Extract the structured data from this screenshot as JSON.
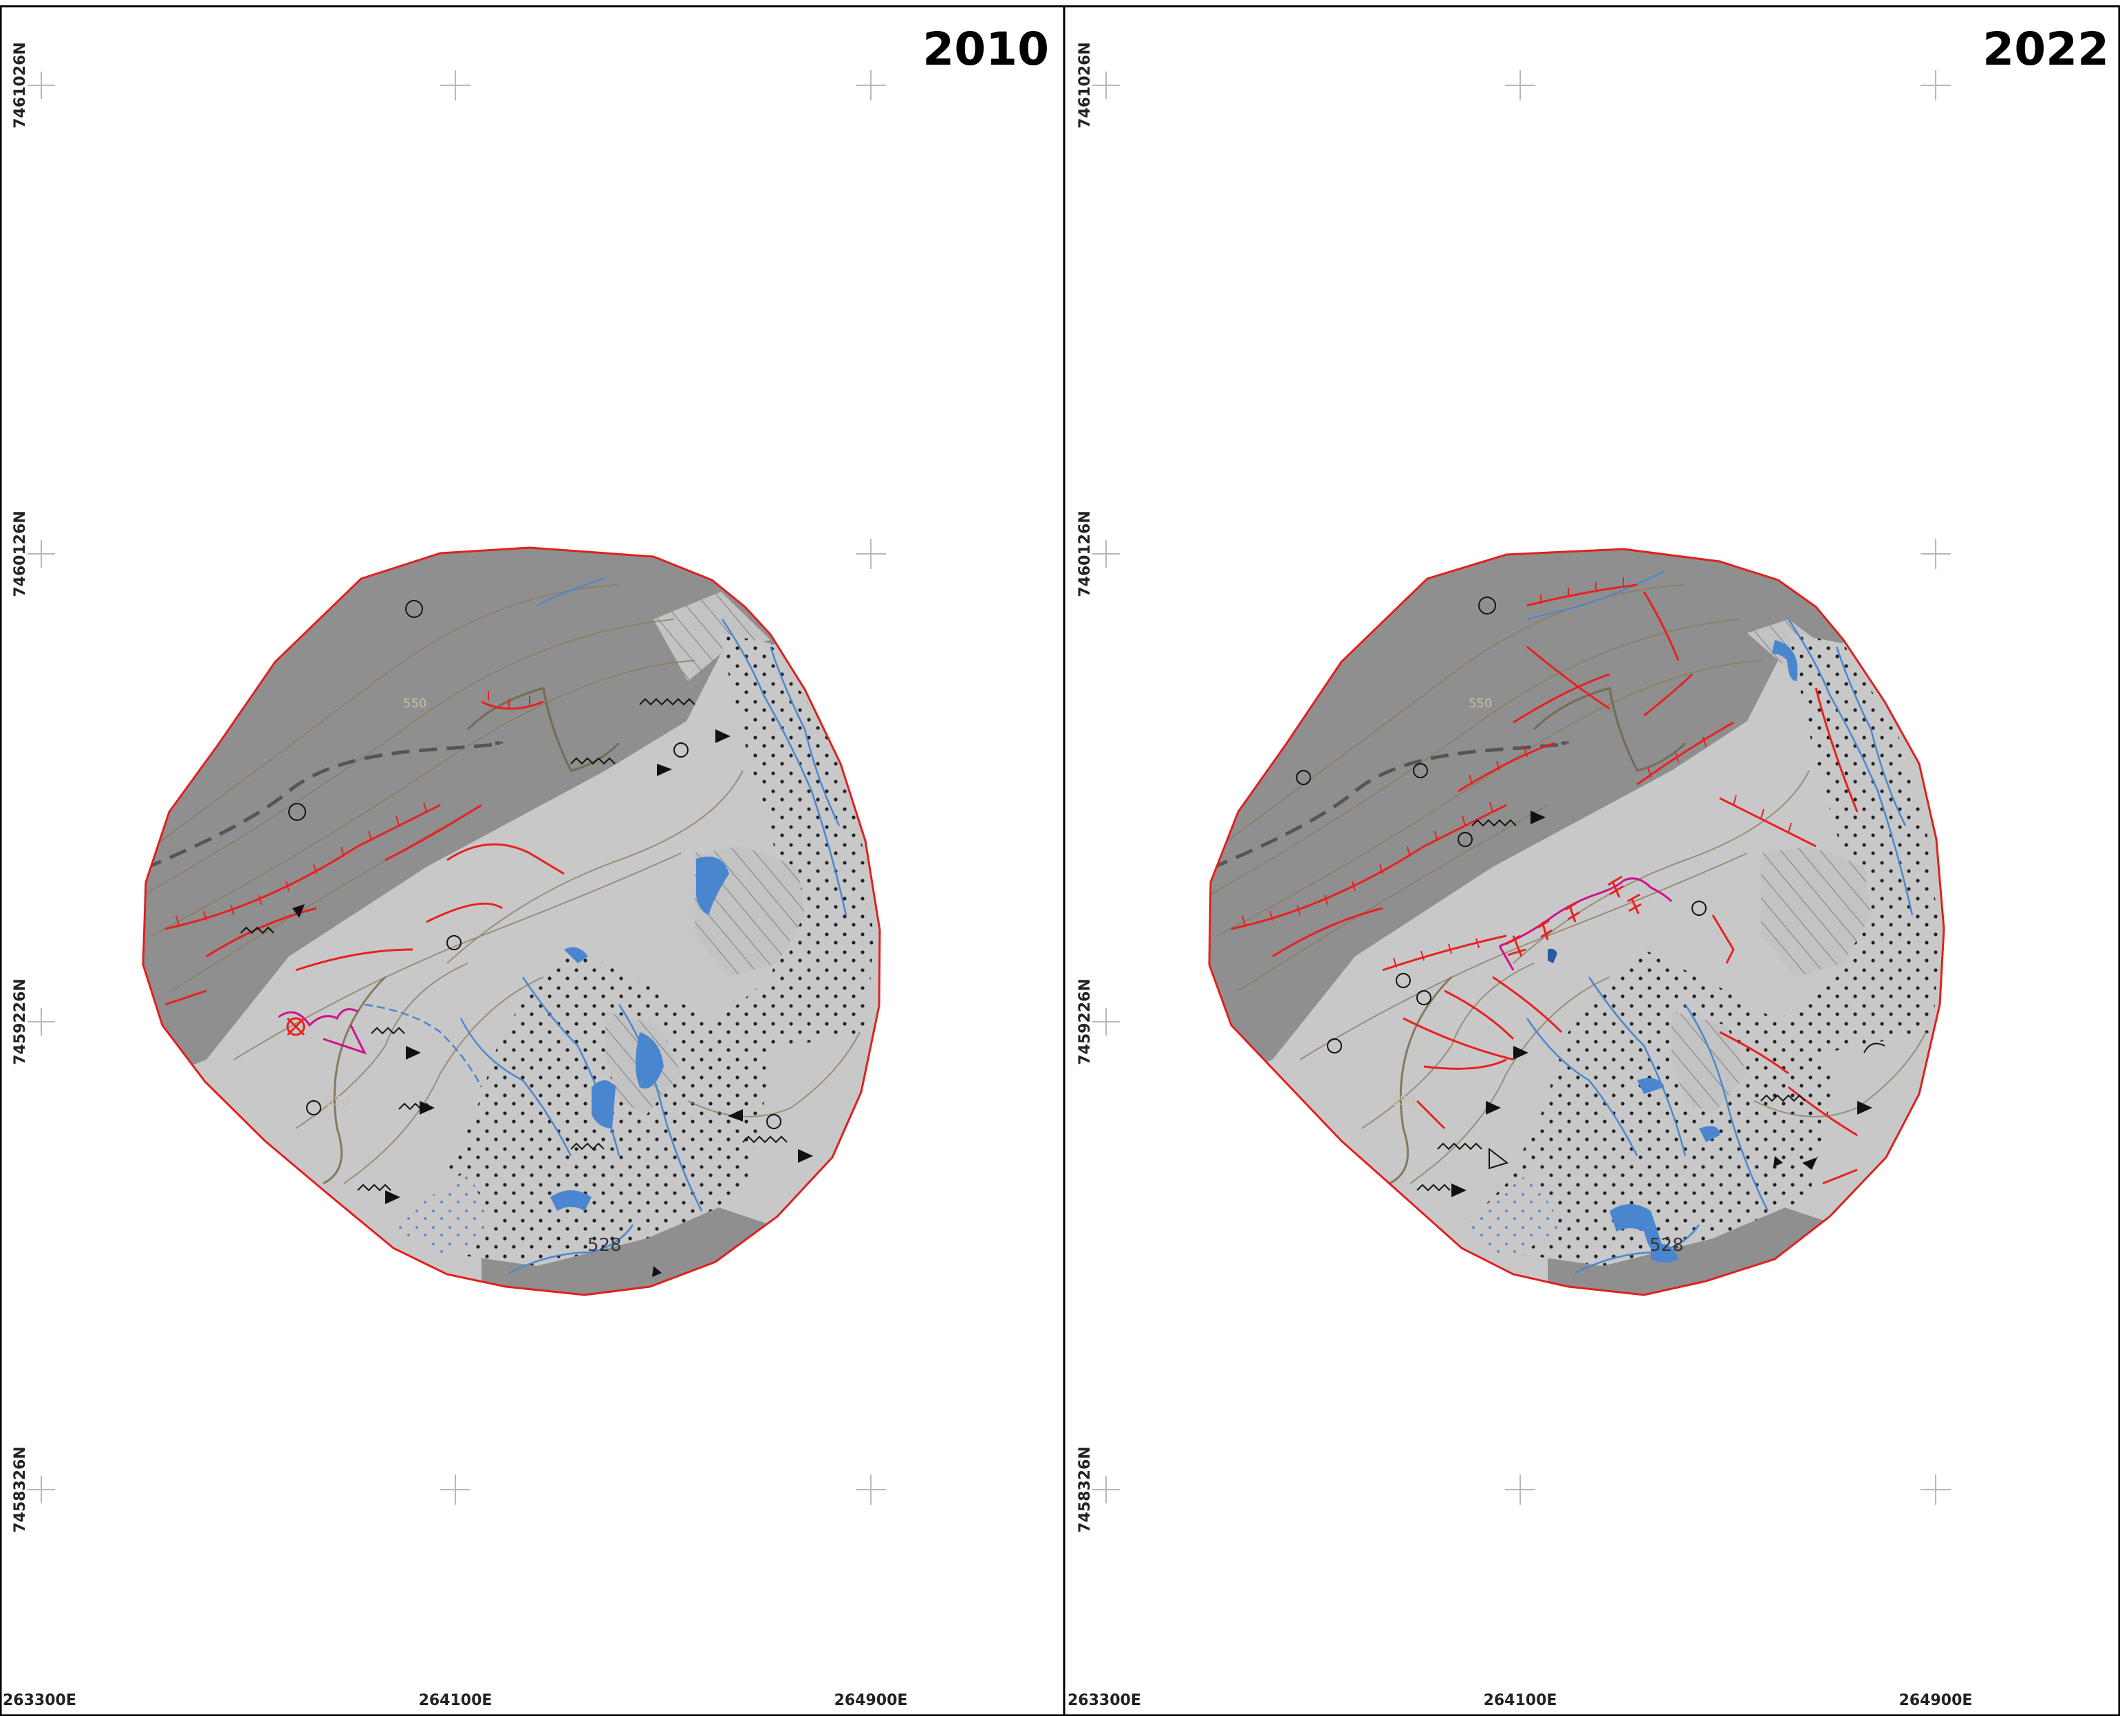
{
  "panels": [
    {
      "year": "2010"
    },
    {
      "year": "2022"
    }
  ],
  "grid": {
    "northings": [
      "7461026N",
      "7460126N",
      "7459226N",
      "7458326N"
    ],
    "eastings": [
      "263300E",
      "264100E",
      "264900E"
    ]
  },
  "labels": {
    "contour_550": "550",
    "spot_528": "528"
  },
  "colors": {
    "outline": "#e02020",
    "dark_zone": "#8f8f8f",
    "light_zone": "#c8c8c8",
    "water": "#4a86d0",
    "scarp": "#e82020",
    "mass_movement": "#d0108a",
    "contour": "#8a7a5a"
  }
}
